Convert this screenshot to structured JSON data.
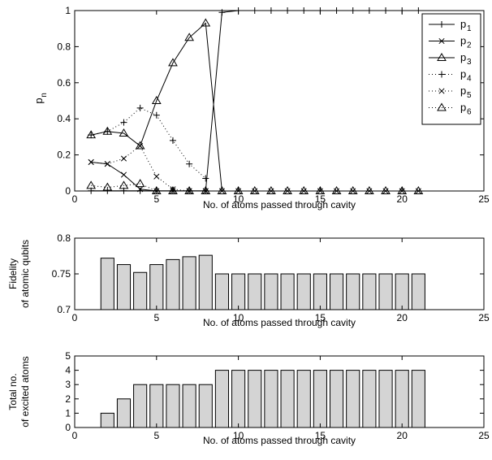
{
  "chart_data": [
    {
      "type": "line",
      "title": "",
      "xlabel": "No. of atoms passed through cavity",
      "ylabel": "p",
      "ylabel_sub": "n",
      "xlim": [
        0,
        25
      ],
      "ylim": [
        0,
        1
      ],
      "xticks": [
        0,
        5,
        10,
        15,
        20,
        25
      ],
      "yticks": [
        0,
        0.2,
        0.4,
        0.6,
        0.8,
        1
      ],
      "legend_position": "top-right",
      "series": [
        {
          "name": "p",
          "sub": "1",
          "marker": "plus",
          "line": "solid",
          "x": [
            1,
            2,
            3,
            4,
            5,
            6,
            7,
            8,
            9,
            10,
            11,
            12,
            13,
            14,
            15,
            16,
            17,
            18,
            19,
            20,
            21
          ],
          "y": [
            0.001,
            0.001,
            0.001,
            0.001,
            0.001,
            0.001,
            0.001,
            0.001,
            0.99,
            1,
            1,
            1,
            1,
            1,
            1,
            1,
            1,
            1,
            1,
            1,
            1
          ]
        },
        {
          "name": "p",
          "sub": "2",
          "marker": "cross",
          "line": "solid",
          "x": [
            1,
            2,
            3,
            4,
            5,
            6,
            7,
            8,
            9,
            10,
            11,
            12,
            13,
            14,
            15,
            16,
            17,
            18,
            19,
            20,
            21
          ],
          "y": [
            0.16,
            0.15,
            0.09,
            0.01,
            0,
            0,
            0,
            0,
            0,
            0,
            0,
            0,
            0,
            0,
            0,
            0,
            0,
            0,
            0,
            0,
            0
          ]
        },
        {
          "name": "p",
          "sub": "3",
          "marker": "triangle",
          "line": "solid",
          "x": [
            1,
            2,
            3,
            4,
            5,
            6,
            7,
            8,
            9,
            10,
            11,
            12,
            13,
            14,
            15,
            16,
            17,
            18,
            19,
            20,
            21
          ],
          "y": [
            0.31,
            0.33,
            0.32,
            0.25,
            0.5,
            0.71,
            0.85,
            0.93,
            0,
            0,
            0,
            0,
            0,
            0,
            0,
            0,
            0,
            0,
            0,
            0,
            0
          ]
        },
        {
          "name": "p",
          "sub": "4",
          "marker": "plus",
          "line": "dotted",
          "x": [
            1,
            2,
            3,
            4,
            5,
            6,
            7,
            8
          ],
          "y": [
            0.31,
            0.33,
            0.38,
            0.46,
            0.42,
            0.28,
            0.15,
            0.07
          ]
        },
        {
          "name": "p",
          "sub": "5",
          "marker": "cross",
          "line": "dotted",
          "x": [
            1,
            2,
            3,
            4,
            5,
            6,
            7,
            8
          ],
          "y": [
            0.16,
            0.15,
            0.18,
            0.25,
            0.08,
            0.01,
            0,
            0
          ]
        },
        {
          "name": "p",
          "sub": "6",
          "marker": "triangle",
          "line": "dotted",
          "x": [
            1,
            2,
            3,
            4,
            5,
            6,
            7,
            8
          ],
          "y": [
            0.03,
            0.02,
            0.03,
            0.04,
            0,
            0,
            0,
            0
          ]
        }
      ]
    },
    {
      "type": "bar",
      "title": "",
      "xlabel": "No. of atoms passed through cavity",
      "ylabel_lines": [
        "Fidelity",
        "of atomic qubits"
      ],
      "xlim": [
        0,
        25
      ],
      "ylim": [
        0.7,
        0.8
      ],
      "xticks": [
        0,
        5,
        10,
        15,
        20,
        25
      ],
      "yticks": [
        0.7,
        0.75,
        0.8
      ],
      "bar_color": "#d4d4d4",
      "x": [
        2,
        3,
        4,
        5,
        6,
        7,
        8,
        9,
        10,
        11,
        12,
        13,
        14,
        15,
        16,
        17,
        18,
        19,
        20,
        21
      ],
      "values": [
        0.772,
        0.763,
        0.752,
        0.763,
        0.77,
        0.774,
        0.776,
        0.75,
        0.75,
        0.75,
        0.75,
        0.75,
        0.75,
        0.75,
        0.75,
        0.75,
        0.75,
        0.75,
        0.75,
        0.75
      ]
    },
    {
      "type": "bar",
      "title": "",
      "xlabel": "No. of atoms passed through cavity",
      "ylabel_lines": [
        "Total no.",
        "of excited atoms"
      ],
      "xlim": [
        0,
        25
      ],
      "ylim": [
        0,
        5
      ],
      "xticks": [
        0,
        5,
        10,
        15,
        20,
        25
      ],
      "yticks": [
        0,
        1,
        2,
        3,
        4,
        5
      ],
      "bar_color": "#d4d4d4",
      "x": [
        2,
        3,
        4,
        5,
        6,
        7,
        8,
        9,
        10,
        11,
        12,
        13,
        14,
        15,
        16,
        17,
        18,
        19,
        20,
        21
      ],
      "values": [
        1,
        2,
        3,
        3,
        3,
        3,
        3,
        4,
        4,
        4,
        4,
        4,
        4,
        4,
        4,
        4,
        4,
        4,
        4,
        4
      ]
    }
  ]
}
